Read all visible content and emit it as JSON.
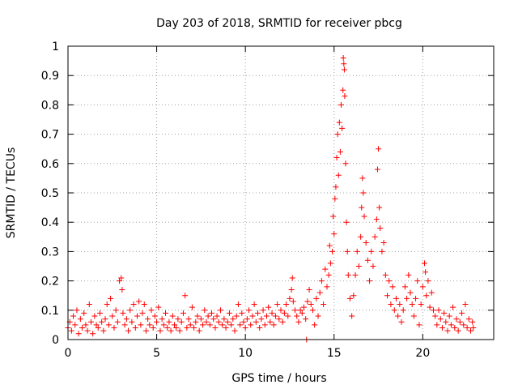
{
  "chart_data": {
    "type": "scatter",
    "title": "Day 203 of 2018, SRMTID for receiver pbcg",
    "xlabel": "GPS time / hours",
    "ylabel": "SRMTID / TECUs",
    "xlim": [
      0,
      24
    ],
    "ylim": [
      0,
      1
    ],
    "xticks": [
      0,
      5,
      10,
      15,
      20
    ],
    "xtick_labels": [
      "0",
      "5",
      "10",
      "15",
      "20"
    ],
    "yticks": [
      0,
      0.1,
      0.2,
      0.3,
      0.4,
      0.5,
      0.6,
      0.7,
      0.8,
      0.9,
      1
    ],
    "ytick_labels": [
      "0",
      "0.1",
      "0.2",
      "0.3",
      "0.4",
      "0.5",
      "0.6",
      "0.7",
      "0.8",
      "0.9",
      "1"
    ],
    "grid": true,
    "marker": "plus",
    "series": [
      {
        "name": "SRMTID",
        "color": "#ff0000",
        "points": [
          [
            0.0,
            0.04
          ],
          [
            0.1,
            0.06
          ],
          [
            0.2,
            0.03
          ],
          [
            0.3,
            0.08
          ],
          [
            0.4,
            0.05
          ],
          [
            0.5,
            0.1
          ],
          [
            0.6,
            0.02
          ],
          [
            0.7,
            0.07
          ],
          [
            0.8,
            0.04
          ],
          [
            0.9,
            0.09
          ],
          [
            1.0,
            0.05
          ],
          [
            1.1,
            0.03
          ],
          [
            1.2,
            0.12
          ],
          [
            1.3,
            0.06
          ],
          [
            1.4,
            0.02
          ],
          [
            1.5,
            0.08
          ],
          [
            1.6,
            0.05
          ],
          [
            1.7,
            0.04
          ],
          [
            1.8,
            0.09
          ],
          [
            1.9,
            0.06
          ],
          [
            2.0,
            0.03
          ],
          [
            2.1,
            0.07
          ],
          [
            2.2,
            0.12
          ],
          [
            2.3,
            0.05
          ],
          [
            2.4,
            0.14
          ],
          [
            2.5,
            0.08
          ],
          [
            2.6,
            0.04
          ],
          [
            2.7,
            0.1
          ],
          [
            2.8,
            0.06
          ],
          [
            2.9,
            0.2
          ],
          [
            3.0,
            0.21
          ],
          [
            3.05,
            0.17
          ],
          [
            3.1,
            0.09
          ],
          [
            3.2,
            0.05
          ],
          [
            3.3,
            0.07
          ],
          [
            3.4,
            0.03
          ],
          [
            3.5,
            0.1
          ],
          [
            3.6,
            0.06
          ],
          [
            3.7,
            0.12
          ],
          [
            3.8,
            0.04
          ],
          [
            3.9,
            0.08
          ],
          [
            4.0,
            0.13
          ],
          [
            4.1,
            0.05
          ],
          [
            4.2,
            0.09
          ],
          [
            4.3,
            0.12
          ],
          [
            4.4,
            0.03
          ],
          [
            4.5,
            0.07
          ],
          [
            4.6,
            0.05
          ],
          [
            4.7,
            0.1
          ],
          [
            4.8,
            0.04
          ],
          [
            4.9,
            0.08
          ],
          [
            5.0,
            0.06
          ],
          [
            5.1,
            0.11
          ],
          [
            5.2,
            0.03
          ],
          [
            5.3,
            0.07
          ],
          [
            5.4,
            0.05
          ],
          [
            5.5,
            0.09
          ],
          [
            5.6,
            0.04
          ],
          [
            5.7,
            0.06
          ],
          [
            5.8,
            0.03
          ],
          [
            5.9,
            0.08
          ],
          [
            6.0,
            0.05
          ],
          [
            6.1,
            0.04
          ],
          [
            6.2,
            0.07
          ],
          [
            6.3,
            0.03
          ],
          [
            6.4,
            0.06
          ],
          [
            6.5,
            0.09
          ],
          [
            6.6,
            0.15
          ],
          [
            6.7,
            0.04
          ],
          [
            6.8,
            0.07
          ],
          [
            6.9,
            0.05
          ],
          [
            7.0,
            0.11
          ],
          [
            7.1,
            0.04
          ],
          [
            7.2,
            0.06
          ],
          [
            7.3,
            0.08
          ],
          [
            7.4,
            0.03
          ],
          [
            7.5,
            0.07
          ],
          [
            7.6,
            0.05
          ],
          [
            7.7,
            0.1
          ],
          [
            7.8,
            0.06
          ],
          [
            7.9,
            0.08
          ],
          [
            8.0,
            0.05
          ],
          [
            8.1,
            0.09
          ],
          [
            8.2,
            0.07
          ],
          [
            8.3,
            0.04
          ],
          [
            8.4,
            0.08
          ],
          [
            8.5,
            0.06
          ],
          [
            8.6,
            0.1
          ],
          [
            8.7,
            0.05
          ],
          [
            8.8,
            0.07
          ],
          [
            8.9,
            0.04
          ],
          [
            9.0,
            0.06
          ],
          [
            9.1,
            0.09
          ],
          [
            9.2,
            0.05
          ],
          [
            9.3,
            0.07
          ],
          [
            9.4,
            0.03
          ],
          [
            9.5,
            0.08
          ],
          [
            9.6,
            0.12
          ],
          [
            9.7,
            0.05
          ],
          [
            9.8,
            0.09
          ],
          [
            9.9,
            0.06
          ],
          [
            10.0,
            0.04
          ],
          [
            10.1,
            0.07
          ],
          [
            10.2,
            0.1
          ],
          [
            10.3,
            0.05
          ],
          [
            10.4,
            0.08
          ],
          [
            10.5,
            0.12
          ],
          [
            10.6,
            0.06
          ],
          [
            10.7,
            0.09
          ],
          [
            10.8,
            0.04
          ],
          [
            10.9,
            0.07
          ],
          [
            11.0,
            0.1
          ],
          [
            11.1,
            0.05
          ],
          [
            11.2,
            0.08
          ],
          [
            11.3,
            0.11
          ],
          [
            11.4,
            0.06
          ],
          [
            11.5,
            0.09
          ],
          [
            11.6,
            0.05
          ],
          [
            11.7,
            0.08
          ],
          [
            11.8,
            0.12
          ],
          [
            11.9,
            0.07
          ],
          [
            12.0,
            0.1
          ],
          [
            12.1,
            0.06
          ],
          [
            12.2,
            0.09
          ],
          [
            12.3,
            0.12
          ],
          [
            12.4,
            0.08
          ],
          [
            12.5,
            0.14
          ],
          [
            12.6,
            0.17
          ],
          [
            12.65,
            0.21
          ],
          [
            12.7,
            0.13
          ],
          [
            12.8,
            0.1
          ],
          [
            12.9,
            0.08
          ],
          [
            13.0,
            0.06
          ],
          [
            13.1,
            0.1
          ],
          [
            13.2,
            0.09
          ],
          [
            13.3,
            0.11
          ],
          [
            13.4,
            0.07
          ],
          [
            13.45,
            0.0
          ],
          [
            13.5,
            0.13
          ],
          [
            13.6,
            0.17
          ],
          [
            13.7,
            0.12
          ],
          [
            13.8,
            0.1
          ],
          [
            13.9,
            0.05
          ],
          [
            14.0,
            0.14
          ],
          [
            14.1,
            0.08
          ],
          [
            14.2,
            0.16
          ],
          [
            14.3,
            0.2
          ],
          [
            14.4,
            0.12
          ],
          [
            14.5,
            0.24
          ],
          [
            14.6,
            0.18
          ],
          [
            14.7,
            0.22
          ],
          [
            14.75,
            0.32
          ],
          [
            14.8,
            0.26
          ],
          [
            14.9,
            0.3
          ],
          [
            14.95,
            0.42
          ],
          [
            15.0,
            0.36
          ],
          [
            15.05,
            0.48
          ],
          [
            15.1,
            0.52
          ],
          [
            15.15,
            0.62
          ],
          [
            15.2,
            0.7
          ],
          [
            15.25,
            0.56
          ],
          [
            15.3,
            0.74
          ],
          [
            15.35,
            0.64
          ],
          [
            15.4,
            0.8
          ],
          [
            15.45,
            0.72
          ],
          [
            15.5,
            0.85
          ],
          [
            15.52,
            0.96
          ],
          [
            15.55,
            0.94
          ],
          [
            15.58,
            0.92
          ],
          [
            15.6,
            0.83
          ],
          [
            15.65,
            0.6
          ],
          [
            15.7,
            0.4
          ],
          [
            15.75,
            0.3
          ],
          [
            15.8,
            0.22
          ],
          [
            15.9,
            0.14
          ],
          [
            16.0,
            0.08
          ],
          [
            16.1,
            0.15
          ],
          [
            16.2,
            0.22
          ],
          [
            16.3,
            0.3
          ],
          [
            16.4,
            0.25
          ],
          [
            16.5,
            0.35
          ],
          [
            16.55,
            0.45
          ],
          [
            16.6,
            0.55
          ],
          [
            16.65,
            0.5
          ],
          [
            16.7,
            0.42
          ],
          [
            16.8,
            0.33
          ],
          [
            16.9,
            0.27
          ],
          [
            17.0,
            0.2
          ],
          [
            17.1,
            0.3
          ],
          [
            17.2,
            0.25
          ],
          [
            17.3,
            0.35
          ],
          [
            17.4,
            0.41
          ],
          [
            17.45,
            0.58
          ],
          [
            17.5,
            0.65
          ],
          [
            17.55,
            0.45
          ],
          [
            17.6,
            0.38
          ],
          [
            17.7,
            0.3
          ],
          [
            17.8,
            0.33
          ],
          [
            17.9,
            0.22
          ],
          [
            18.0,
            0.15
          ],
          [
            18.1,
            0.2
          ],
          [
            18.2,
            0.12
          ],
          [
            18.3,
            0.18
          ],
          [
            18.4,
            0.1
          ],
          [
            18.5,
            0.14
          ],
          [
            18.6,
            0.08
          ],
          [
            18.7,
            0.12
          ],
          [
            18.8,
            0.06
          ],
          [
            18.9,
            0.1
          ],
          [
            19.0,
            0.18
          ],
          [
            19.1,
            0.14
          ],
          [
            19.2,
            0.22
          ],
          [
            19.3,
            0.16
          ],
          [
            19.4,
            0.12
          ],
          [
            19.5,
            0.08
          ],
          [
            19.6,
            0.14
          ],
          [
            19.7,
            0.2
          ],
          [
            19.8,
            0.05
          ],
          [
            19.9,
            0.12
          ],
          [
            20.0,
            0.18
          ],
          [
            20.1,
            0.26
          ],
          [
            20.15,
            0.23
          ],
          [
            20.2,
            0.15
          ],
          [
            20.3,
            0.2
          ],
          [
            20.4,
            0.11
          ],
          [
            20.5,
            0.16
          ],
          [
            20.6,
            0.1
          ],
          [
            20.7,
            0.08
          ],
          [
            20.8,
            0.05
          ],
          [
            20.9,
            0.1
          ],
          [
            21.0,
            0.07
          ],
          [
            21.1,
            0.04
          ],
          [
            21.2,
            0.09
          ],
          [
            21.3,
            0.06
          ],
          [
            21.4,
            0.03
          ],
          [
            21.5,
            0.08
          ],
          [
            21.6,
            0.05
          ],
          [
            21.7,
            0.11
          ],
          [
            21.8,
            0.04
          ],
          [
            21.9,
            0.07
          ],
          [
            22.0,
            0.03
          ],
          [
            22.1,
            0.06
          ],
          [
            22.2,
            0.09
          ],
          [
            22.3,
            0.05
          ],
          [
            22.4,
            0.12
          ],
          [
            22.5,
            0.04
          ],
          [
            22.6,
            0.07
          ],
          [
            22.7,
            0.03
          ],
          [
            22.8,
            0.06
          ],
          [
            22.85,
            0.04
          ]
        ]
      }
    ]
  }
}
